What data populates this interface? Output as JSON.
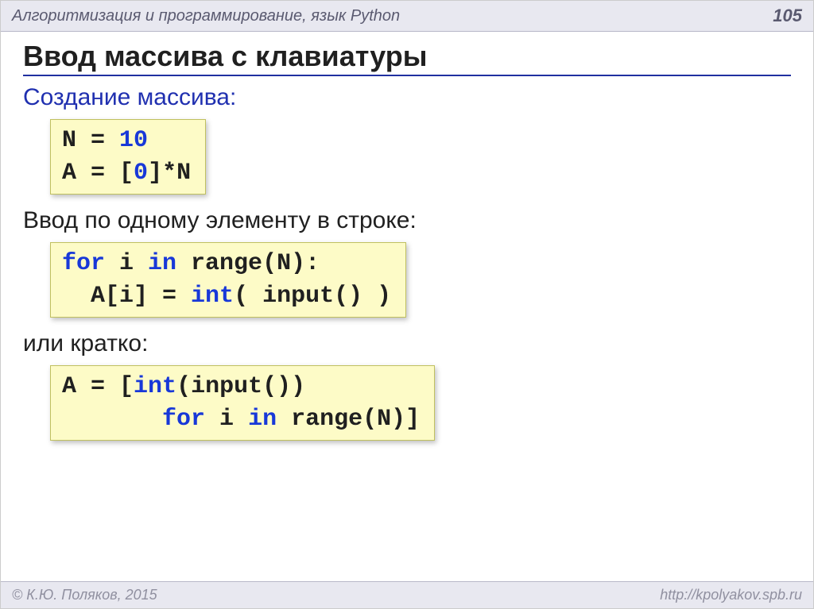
{
  "header": {
    "title": "Алгоритмизация и программирование, язык Python",
    "page": "105"
  },
  "title": "Ввод массива с клавиатуры",
  "sec1": {
    "heading": "Создание массива:",
    "code": [
      [
        {
          "t": "N",
          "c": "tk-black"
        },
        {
          "t": " = ",
          "c": "tk-black"
        },
        {
          "t": "10",
          "c": "tk-num"
        }
      ],
      [
        {
          "t": "A",
          "c": "tk-black"
        },
        {
          "t": " = ",
          "c": "tk-black"
        },
        {
          "t": "[",
          "c": "tk-black"
        },
        {
          "t": "0",
          "c": "tk-num"
        },
        {
          "t": "]*N",
          "c": "tk-black"
        }
      ]
    ]
  },
  "sec2": {
    "heading": "Ввод по одному элементу в строке:",
    "code": [
      [
        {
          "t": "for",
          "c": "tk-blue"
        },
        {
          "t": " i ",
          "c": "tk-black"
        },
        {
          "t": "in",
          "c": "tk-blue"
        },
        {
          "t": " range(N):",
          "c": "tk-black"
        }
      ],
      [
        {
          "t": "  A[i]",
          "c": "tk-black"
        },
        {
          "t": " = ",
          "c": "tk-black"
        },
        {
          "t": "int",
          "c": "tk-blue"
        },
        {
          "t": "( input() )",
          "c": "tk-black"
        }
      ]
    ]
  },
  "sec3": {
    "heading": "или кратко:",
    "code": [
      [
        {
          "t": "A",
          "c": "tk-black"
        },
        {
          "t": " = ",
          "c": "tk-black"
        },
        {
          "t": "[",
          "c": "tk-black"
        },
        {
          "t": "int",
          "c": "tk-blue"
        },
        {
          "t": "(input())",
          "c": "tk-black"
        }
      ],
      [
        {
          "t": "       ",
          "c": "tk-black"
        },
        {
          "t": "for",
          "c": "tk-blue"
        },
        {
          "t": " i ",
          "c": "tk-black"
        },
        {
          "t": "in",
          "c": "tk-blue"
        },
        {
          "t": " range(N)]",
          "c": "tk-black"
        }
      ]
    ]
  },
  "footer": {
    "copyright": "© К.Ю. Поляков, 2015",
    "url": "http://kpolyakov.spb.ru"
  },
  "colors": {
    "header_bg": "#e8e8f0",
    "code_bg": "#fdfbc7",
    "accent_blue": "#2030b0",
    "keyword_blue": "#1838d8"
  }
}
